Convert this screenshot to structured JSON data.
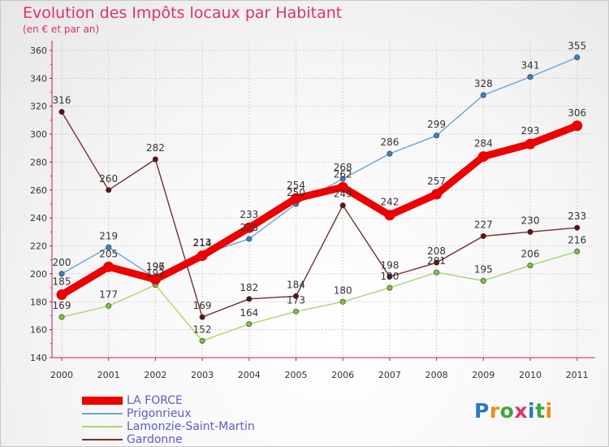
{
  "title": "Evolution des Impôts locaux par Habitant",
  "subtitle": "(en € et par an)",
  "logo": {
    "text": "Proxiti",
    "letters": [
      "P",
      "r",
      "o",
      "x",
      "i",
      "t",
      "i"
    ],
    "colors": [
      "#2a78c8",
      "#f08a1c",
      "#3aa83a",
      "#e0316b",
      "#2a78c8",
      "#3aa83a",
      "#f08a1c"
    ]
  },
  "chart_data": {
    "type": "line",
    "categories": [
      "2000",
      "2001",
      "2002",
      "2003",
      "2004",
      "2005",
      "2006",
      "2007",
      "2008",
      "2009",
      "2010",
      "2011"
    ],
    "ylim": [
      140,
      360
    ],
    "yticks": [
      140,
      160,
      180,
      200,
      220,
      240,
      260,
      280,
      300,
      320,
      340,
      360
    ],
    "grid": true,
    "legend_position": "bottom-left",
    "series": [
      {
        "name": "Gardonne",
        "color": "#7a2e2e",
        "marker": "#5a1414",
        "values": [
          316,
          260,
          282,
          169,
          182,
          184,
          249,
          198,
          208,
          227,
          230,
          233
        ]
      },
      {
        "name": "Lamonzie-Saint-Martin",
        "color": "#a6d86a",
        "marker": "#7cc23c",
        "values": [
          169,
          177,
          192,
          152,
          164,
          173,
          180,
          190,
          201,
          195,
          206,
          216
        ]
      },
      {
        "name": "Prigonrieux",
        "color": "#6aa3d6",
        "marker": "#3a82c4",
        "values": [
          200,
          219,
          197,
          214,
          225,
          250,
          268,
          286,
          299,
          328,
          341,
          355
        ]
      },
      {
        "name": "LA FORCE",
        "color": "#ee0000",
        "marker": "#ee0000",
        "values": [
          185,
          205,
          196,
          213,
          233,
          254,
          262,
          242,
          257,
          284,
          293,
          306
        ]
      }
    ],
    "labels": {
      "Gardonne": [
        "316",
        "260",
        "282",
        "169",
        "182",
        "184",
        "249",
        "198",
        "208",
        "227",
        "230",
        "233"
      ],
      "Lamonzie-Saint-Martin": [
        "169",
        "177",
        "192",
        "152",
        "164",
        "173",
        "180",
        "190",
        "201",
        "195",
        "206",
        "216"
      ],
      "Prigonrieux": [
        "200",
        "219",
        "197",
        "214",
        "225",
        "250",
        "268",
        "286",
        "299",
        "328",
        "341",
        "355"
      ],
      "LA FORCE": [
        "185",
        "205",
        "196",
        "213",
        "233",
        "254",
        "262",
        "242",
        "257",
        "284",
        "293",
        "306"
      ]
    }
  },
  "legend": [
    {
      "name": "LA FORCE",
      "color": "#ee0000"
    },
    {
      "name": "Prigonrieux",
      "color": "#6aa3d6"
    },
    {
      "name": "Lamonzie-Saint-Martin",
      "color": "#a6d86a"
    },
    {
      "name": "Gardonne",
      "color": "#7a2e2e"
    }
  ]
}
